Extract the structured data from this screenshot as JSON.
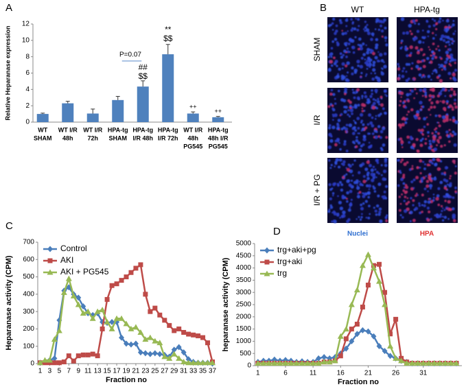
{
  "chart_data": [
    {
      "type": "bar",
      "panel_label": "A",
      "ylabel": "Relative Heparanase expression",
      "categories": [
        [
          "WT",
          "SHAM"
        ],
        [
          "WT I/R",
          "48h"
        ],
        [
          "WT I/R",
          "72h"
        ],
        [
          "HPA-tg",
          "SHAM"
        ],
        [
          "HPA-tg",
          "I/R 48h"
        ],
        [
          "HPA-tg",
          "I/R 72h"
        ],
        [
          "WT I/R",
          "48h",
          "PG545"
        ],
        [
          "HPA-tg",
          "48h I/R",
          "PG545"
        ]
      ],
      "values": [
        1.0,
        2.3,
        1.05,
        2.7,
        4.35,
        8.3,
        1.05,
        0.6
      ],
      "errors": [
        0.1,
        0.25,
        0.55,
        0.45,
        0.7,
        1.2,
        0.2,
        0.1
      ],
      "color": "#4f81bd",
      "ylim": [
        0,
        12
      ],
      "yticks": [
        0,
        2,
        4,
        6,
        8,
        10,
        12
      ],
      "grid": false,
      "annotations": [
        "P=0.07",
        "$$",
        "##",
        "$$",
        "**",
        "++",
        "++"
      ]
    },
    {
      "type": "line",
      "panel_label": "C",
      "xlabel": "Fraction no",
      "ylabel": "Heparanase  activity (CPM)",
      "x": [
        1,
        2,
        3,
        4,
        5,
        6,
        7,
        8,
        9,
        10,
        11,
        12,
        13,
        14,
        15,
        16,
        17,
        18,
        19,
        20,
        21,
        22,
        23,
        24,
        25,
        26,
        27,
        28,
        29,
        30,
        31,
        32,
        33,
        34,
        35,
        36,
        37
      ],
      "series": [
        {
          "name": "Control",
          "color": "#4a7ebb",
          "marker": "diamond",
          "values": [
            5,
            10,
            20,
            30,
            250,
            420,
            440,
            400,
            380,
            330,
            290,
            280,
            290,
            240,
            235,
            240,
            240,
            150,
            115,
            110,
            115,
            65,
            60,
            55,
            60,
            55,
            50,
            40,
            80,
            95,
            65,
            25,
            10,
            5,
            5,
            5,
            0
          ]
        },
        {
          "name": "AKI",
          "color": "#be4b48",
          "marker": "square",
          "values": [
            5,
            5,
            5,
            5,
            5,
            10,
            45,
            15,
            45,
            50,
            50,
            55,
            45,
            200,
            370,
            450,
            460,
            480,
            500,
            525,
            550,
            570,
            400,
            300,
            320,
            280,
            250,
            220,
            190,
            200,
            180,
            170,
            165,
            160,
            150,
            120,
            10
          ]
        },
        {
          "name": "AKI + PG545",
          "color": "#98b954",
          "marker": "triangle",
          "values": [
            5,
            20,
            20,
            140,
            190,
            410,
            490,
            390,
            340,
            290,
            300,
            260,
            300,
            310,
            240,
            200,
            260,
            260,
            230,
            200,
            210,
            180,
            140,
            150,
            130,
            120,
            40,
            30,
            55,
            30,
            10,
            5,
            5,
            5,
            5,
            5,
            5
          ]
        }
      ],
      "xlim": [
        0.5,
        37.5
      ],
      "xticks": [
        1,
        3,
        5,
        7,
        9,
        11,
        13,
        15,
        17,
        19,
        21,
        23,
        25,
        27,
        29,
        31,
        33,
        35,
        37
      ],
      "ylim": [
        0,
        700
      ],
      "yticks": [
        0,
        100,
        200,
        300,
        400,
        500,
        600,
        700
      ],
      "grid": false,
      "legend": "upper left"
    },
    {
      "type": "line",
      "panel_label": "D",
      "xlabel": "Fraction no",
      "ylabel": "heparanase activity (CPM)",
      "x": [
        1,
        2,
        3,
        4,
        5,
        6,
        7,
        8,
        9,
        10,
        11,
        12,
        13,
        14,
        15,
        16,
        17,
        18,
        19,
        20,
        21,
        22,
        23,
        24,
        25,
        26,
        27,
        28,
        29,
        30,
        31,
        32,
        33,
        34,
        35,
        36,
        37
      ],
      "series": [
        {
          "name": "trg+aki+pg",
          "color": "#4a7ebb",
          "marker": "diamond",
          "values": [
            150,
            200,
            200,
            250,
            200,
            230,
            200,
            150,
            180,
            150,
            150,
            300,
            350,
            300,
            350,
            500,
            700,
            1000,
            1300,
            1450,
            1400,
            1200,
            800,
            600,
            400,
            300,
            200,
            150,
            100,
            100,
            100,
            100,
            100,
            100,
            100,
            100,
            100
          ]
        },
        {
          "name": "trg+aki",
          "color": "#be4b48",
          "marker": "square",
          "values": [
            100,
            100,
            100,
            100,
            100,
            100,
            100,
            100,
            100,
            100,
            100,
            100,
            150,
            150,
            200,
            400,
            1100,
            1500,
            1700,
            2400,
            3300,
            4100,
            4150,
            3000,
            1300,
            1900,
            300,
            150,
            100,
            100,
            100,
            100,
            100,
            100,
            100,
            100,
            100
          ]
        },
        {
          "name": "trg",
          "color": "#98b954",
          "marker": "triangle",
          "values": [
            100,
            100,
            100,
            100,
            100,
            100,
            100,
            100,
            100,
            100,
            100,
            100,
            150,
            150,
            200,
            1200,
            1500,
            2500,
            3100,
            4100,
            4550,
            4000,
            3450,
            2500,
            800,
            300,
            200,
            100,
            100,
            100,
            100,
            100,
            100,
            100,
            100,
            100,
            100
          ]
        }
      ],
      "xlim": [
        0.4,
        38
      ],
      "xticks": [
        1,
        6,
        11,
        16,
        21,
        26,
        31
      ],
      "ylim": [
        0,
        5000
      ],
      "yticks": [
        0,
        500,
        1000,
        1500,
        2000,
        2500,
        3000,
        3500,
        4000,
        4500,
        5000
      ],
      "grid": false,
      "legend": "upper left"
    }
  ],
  "image_panel": {
    "panel_label": "B",
    "columns": [
      "WT",
      "HPA-tg"
    ],
    "rows": [
      "SHAM",
      "I/R",
      "I/R + PG"
    ],
    "channels": [
      "Nuclei",
      "HPA"
    ]
  }
}
